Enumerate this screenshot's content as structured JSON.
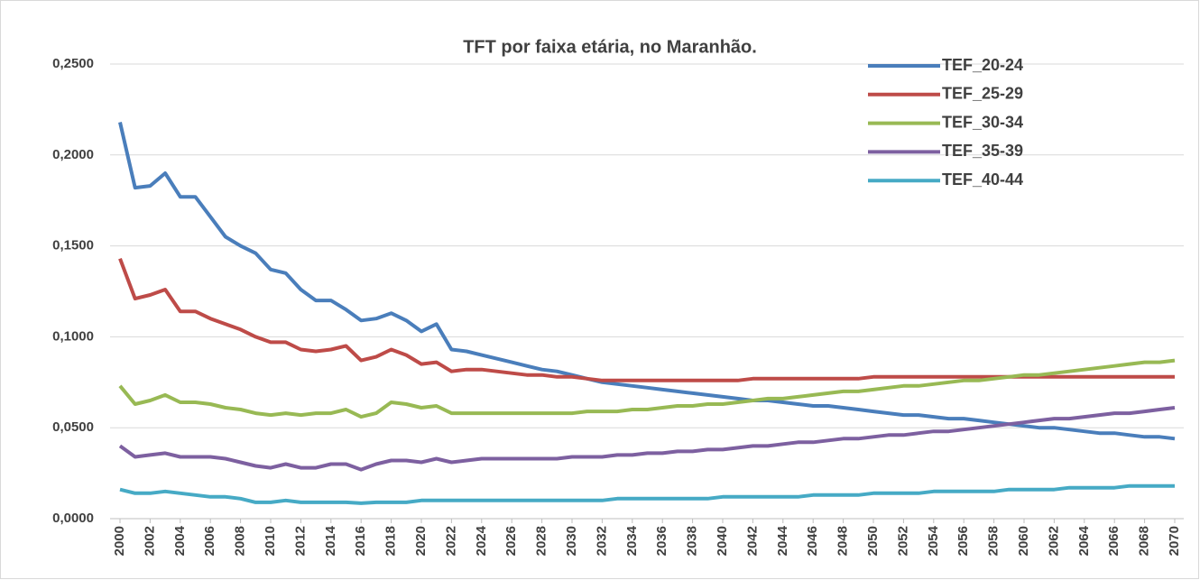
{
  "chart_data": {
    "type": "line",
    "title": "TFT por faixa etária, no Maranhão.",
    "x": [
      2000,
      2001,
      2002,
      2003,
      2004,
      2005,
      2006,
      2007,
      2008,
      2009,
      2010,
      2011,
      2012,
      2013,
      2014,
      2015,
      2016,
      2017,
      2018,
      2019,
      2020,
      2021,
      2022,
      2023,
      2024,
      2025,
      2026,
      2027,
      2028,
      2029,
      2030,
      2031,
      2032,
      2033,
      2034,
      2035,
      2036,
      2037,
      2038,
      2039,
      2040,
      2041,
      2042,
      2043,
      2044,
      2045,
      2046,
      2047,
      2048,
      2049,
      2050,
      2051,
      2052,
      2053,
      2054,
      2055,
      2056,
      2057,
      2058,
      2059,
      2060,
      2061,
      2062,
      2063,
      2064,
      2065,
      2066,
      2067,
      2068,
      2069,
      2070
    ],
    "xlim": [
      2000,
      2070
    ],
    "xticks": [
      2000,
      2002,
      2004,
      2006,
      2008,
      2010,
      2012,
      2014,
      2016,
      2018,
      2020,
      2022,
      2024,
      2026,
      2028,
      2030,
      2032,
      2034,
      2036,
      2038,
      2040,
      2042,
      2044,
      2046,
      2048,
      2050,
      2052,
      2054,
      2056,
      2058,
      2060,
      2062,
      2064,
      2066,
      2068,
      2070
    ],
    "ylim": [
      0,
      0.25
    ],
    "yticks": [
      {
        "value": 0,
        "label": "0,0000"
      },
      {
        "value": 0.05,
        "label": "0,0500"
      },
      {
        "value": 0.1,
        "label": "0,1000"
      },
      {
        "value": 0.15,
        "label": "0,1500"
      },
      {
        "value": 0.2,
        "label": "0,2000"
      },
      {
        "value": 0.25,
        "label": "0,2500"
      }
    ],
    "grid": true,
    "legend": "top-right",
    "series": [
      {
        "name": "TEF_20-24",
        "color": "#4a7ebb",
        "values": [
          0.218,
          0.182,
          0.183,
          0.19,
          0.177,
          0.177,
          0.166,
          0.155,
          0.15,
          0.146,
          0.137,
          0.135,
          0.126,
          0.12,
          0.12,
          0.115,
          0.109,
          0.11,
          0.113,
          0.109,
          0.103,
          0.107,
          0.093,
          0.092,
          0.09,
          0.088,
          0.086,
          0.084,
          0.082,
          0.081,
          0.079,
          0.077,
          0.075,
          0.074,
          0.073,
          0.072,
          0.071,
          0.07,
          0.069,
          0.068,
          0.067,
          0.066,
          0.065,
          0.065,
          0.064,
          0.063,
          0.062,
          0.062,
          0.061,
          0.06,
          0.059,
          0.058,
          0.057,
          0.057,
          0.056,
          0.055,
          0.055,
          0.054,
          0.053,
          0.052,
          0.051,
          0.05,
          0.05,
          0.049,
          0.048,
          0.047,
          0.047,
          0.046,
          0.045,
          0.045,
          0.044
        ]
      },
      {
        "name": "TEF_25-29",
        "color": "#be4b48",
        "values": [
          0.143,
          0.121,
          0.123,
          0.126,
          0.114,
          0.114,
          0.11,
          0.107,
          0.104,
          0.1,
          0.097,
          0.097,
          0.093,
          0.092,
          0.093,
          0.095,
          0.087,
          0.089,
          0.093,
          0.09,
          0.085,
          0.086,
          0.081,
          0.082,
          0.082,
          0.081,
          0.08,
          0.079,
          0.079,
          0.078,
          0.078,
          0.077,
          0.076,
          0.076,
          0.076,
          0.076,
          0.076,
          0.076,
          0.076,
          0.076,
          0.076,
          0.076,
          0.077,
          0.077,
          0.077,
          0.077,
          0.077,
          0.077,
          0.077,
          0.077,
          0.078,
          0.078,
          0.078,
          0.078,
          0.078,
          0.078,
          0.078,
          0.078,
          0.078,
          0.078,
          0.078,
          0.078,
          0.078,
          0.078,
          0.078,
          0.078,
          0.078,
          0.078,
          0.078,
          0.078,
          0.078
        ]
      },
      {
        "name": "TEF_30-34",
        "color": "#98b954",
        "values": [
          0.073,
          0.063,
          0.065,
          0.068,
          0.064,
          0.064,
          0.063,
          0.061,
          0.06,
          0.058,
          0.057,
          0.058,
          0.057,
          0.058,
          0.058,
          0.06,
          0.056,
          0.058,
          0.064,
          0.063,
          0.061,
          0.062,
          0.058,
          0.058,
          0.058,
          0.058,
          0.058,
          0.058,
          0.058,
          0.058,
          0.058,
          0.059,
          0.059,
          0.059,
          0.06,
          0.06,
          0.061,
          0.062,
          0.062,
          0.063,
          0.063,
          0.064,
          0.065,
          0.066,
          0.066,
          0.067,
          0.068,
          0.069,
          0.07,
          0.07,
          0.071,
          0.072,
          0.073,
          0.073,
          0.074,
          0.075,
          0.076,
          0.076,
          0.077,
          0.078,
          0.079,
          0.079,
          0.08,
          0.081,
          0.082,
          0.083,
          0.084,
          0.085,
          0.086,
          0.086,
          0.087
        ]
      },
      {
        "name": "TEF_35-39",
        "color": "#7d60a0",
        "values": [
          0.04,
          0.034,
          0.035,
          0.036,
          0.034,
          0.034,
          0.034,
          0.033,
          0.031,
          0.029,
          0.028,
          0.03,
          0.028,
          0.028,
          0.03,
          0.03,
          0.027,
          0.03,
          0.032,
          0.032,
          0.031,
          0.033,
          0.031,
          0.032,
          0.033,
          0.033,
          0.033,
          0.033,
          0.033,
          0.033,
          0.034,
          0.034,
          0.034,
          0.035,
          0.035,
          0.036,
          0.036,
          0.037,
          0.037,
          0.038,
          0.038,
          0.039,
          0.04,
          0.04,
          0.041,
          0.042,
          0.042,
          0.043,
          0.044,
          0.044,
          0.045,
          0.046,
          0.046,
          0.047,
          0.048,
          0.048,
          0.049,
          0.05,
          0.051,
          0.052,
          0.053,
          0.054,
          0.055,
          0.055,
          0.056,
          0.057,
          0.058,
          0.058,
          0.059,
          0.06,
          0.061
        ]
      },
      {
        "name": "TEF_40-44",
        "color": "#46aac5",
        "values": [
          0.016,
          0.014,
          0.014,
          0.015,
          0.014,
          0.013,
          0.012,
          0.012,
          0.011,
          0.009,
          0.009,
          0.01,
          0.009,
          0.009,
          0.009,
          0.009,
          0.0085,
          0.009,
          0.009,
          0.009,
          0.01,
          0.01,
          0.01,
          0.01,
          0.01,
          0.01,
          0.01,
          0.01,
          0.01,
          0.01,
          0.01,
          0.01,
          0.01,
          0.011,
          0.011,
          0.011,
          0.011,
          0.011,
          0.011,
          0.011,
          0.012,
          0.012,
          0.012,
          0.012,
          0.012,
          0.012,
          0.013,
          0.013,
          0.013,
          0.013,
          0.014,
          0.014,
          0.014,
          0.014,
          0.015,
          0.015,
          0.015,
          0.015,
          0.015,
          0.016,
          0.016,
          0.016,
          0.016,
          0.017,
          0.017,
          0.017,
          0.017,
          0.018,
          0.018,
          0.018,
          0.018
        ]
      }
    ]
  }
}
